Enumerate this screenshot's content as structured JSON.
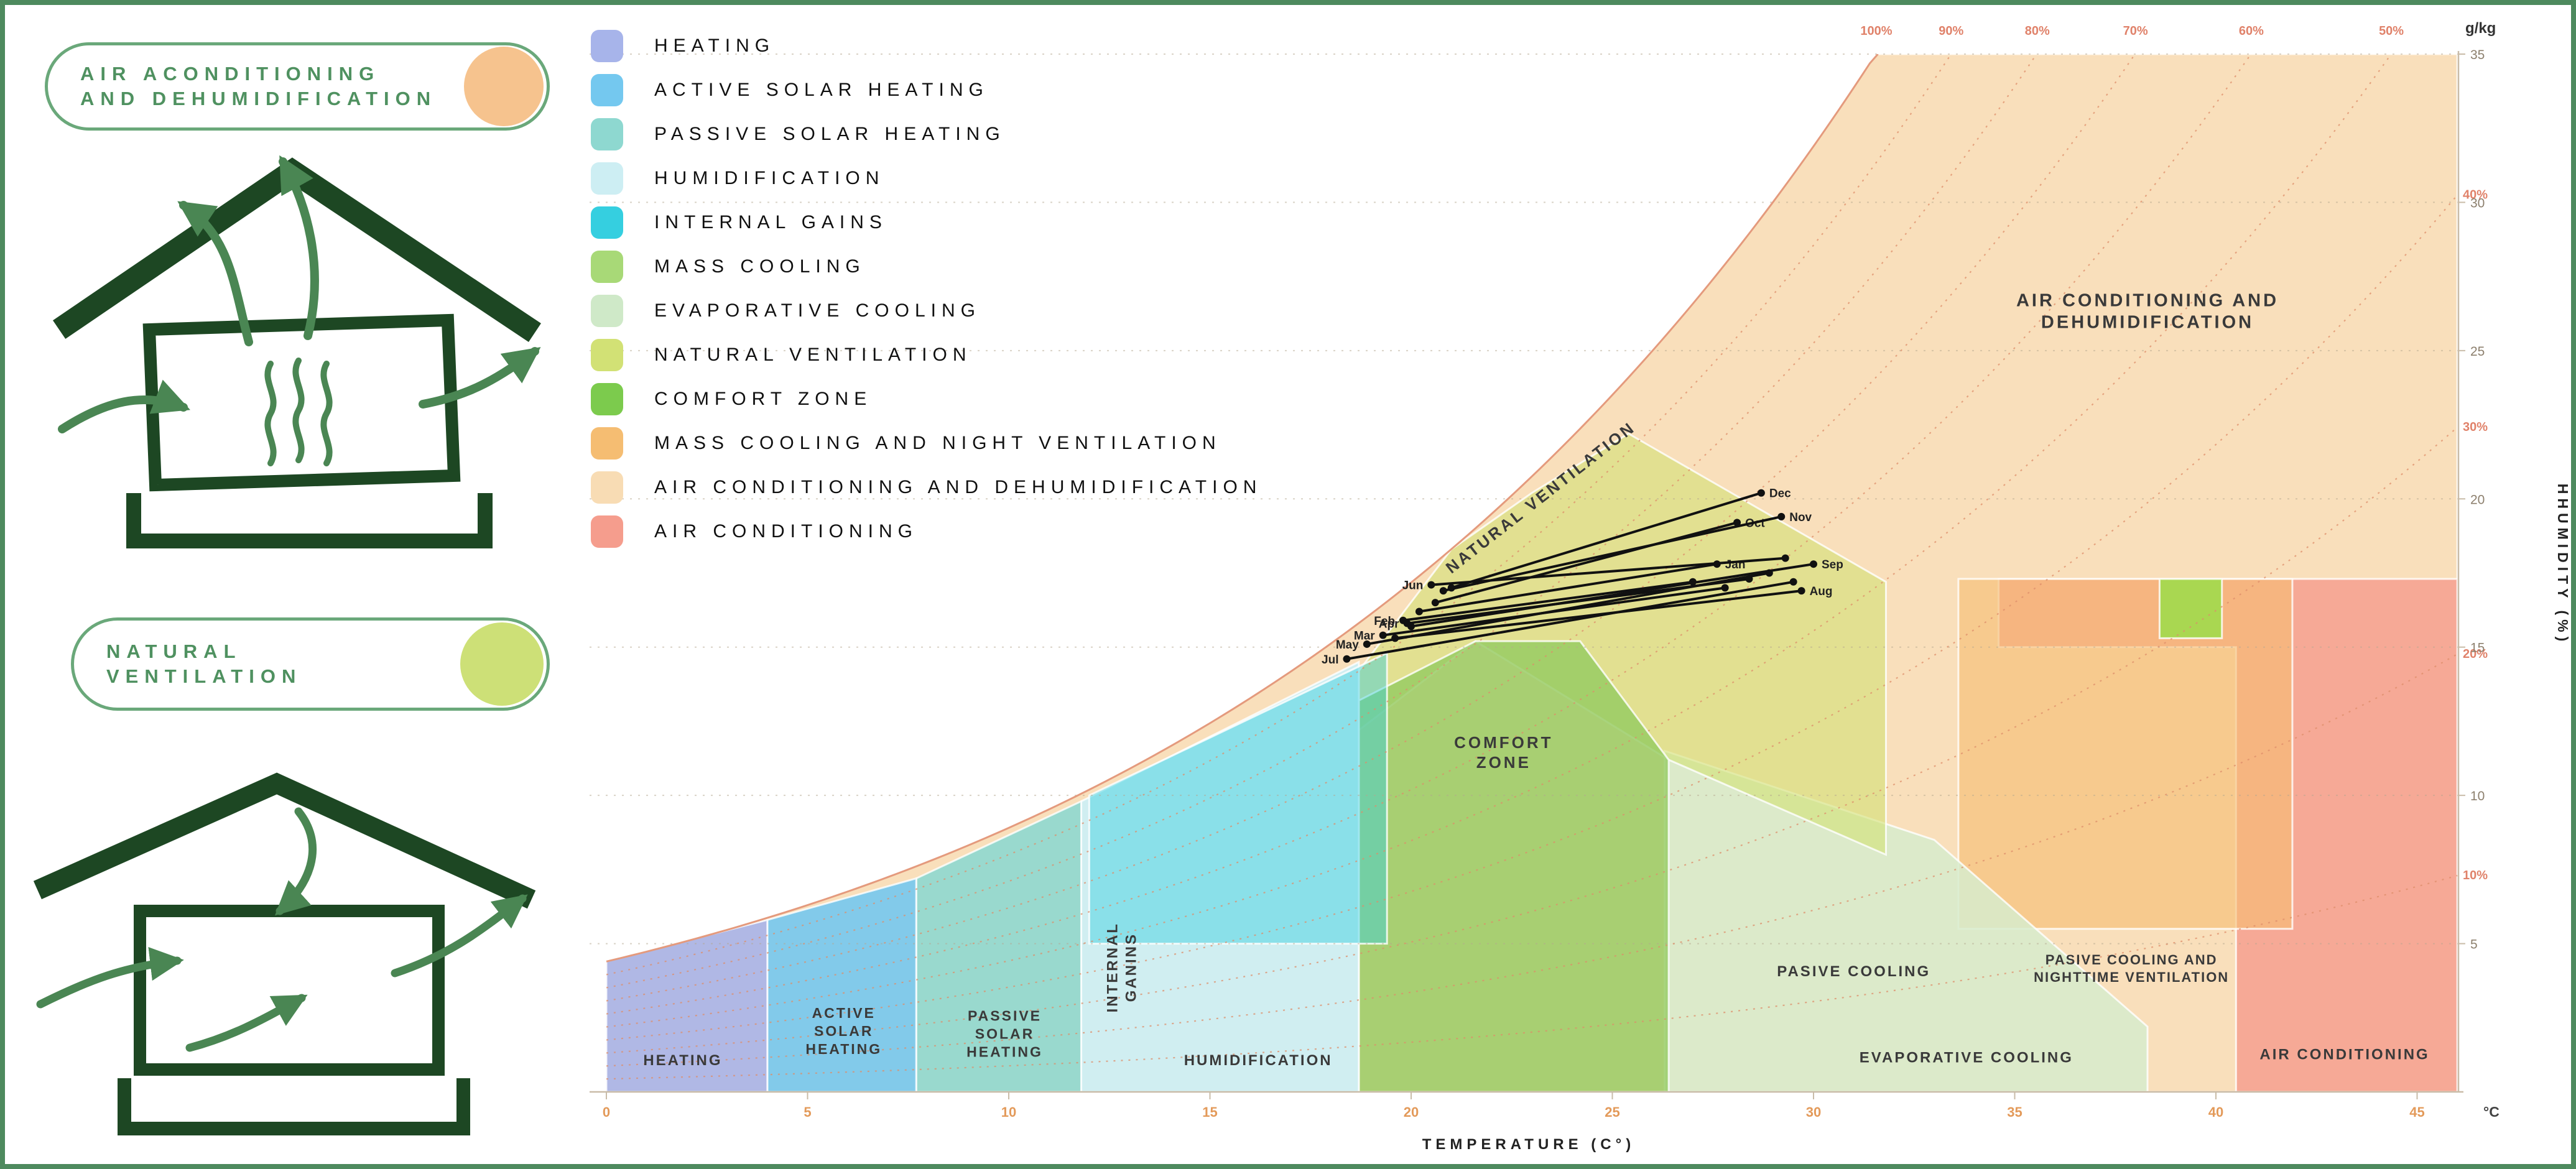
{
  "poster": {
    "frame_color": "#4e8a5e",
    "background": "#ffffff"
  },
  "left_panel": {
    "cards": [
      {
        "title_line1": "AIR ACONDITIONING",
        "title_line2": "AND DEHUMIDIFICATION",
        "badge_color": "#f6c38e"
      },
      {
        "title_line1": "NATURAL",
        "title_line2": "VENTILATION",
        "badge_color": "#cde077"
      }
    ]
  },
  "legend": {
    "items": [
      {
        "label": "HEATING",
        "color": "#a7b4ea"
      },
      {
        "label": "ACTIVE SOLAR HEATING",
        "color": "#74c8ef"
      },
      {
        "label": "PASSIVE SOLAR HEATING",
        "color": "#8ed8d0"
      },
      {
        "label": "HUMIDIFICATION",
        "color": "#cdeef3"
      },
      {
        "label": "INTERNAL GAINS",
        "color": "#35cfe0"
      },
      {
        "label": "MASS COOLING",
        "color": "#a8d977"
      },
      {
        "label": "EVAPORATIVE COOLING",
        "color": "#cfe9c8"
      },
      {
        "label": "NATURAL VENTILATION",
        "color": "#d2e175"
      },
      {
        "label": "COMFORT ZONE",
        "color": "#7ccb4d"
      },
      {
        "label": "MASS COOLING AND NIGHT VENTILATION",
        "color": "#f5bd72"
      },
      {
        "label": "AIR CONDITIONING AND DEHUMIDIFICATION",
        "color": "#f8dcb4"
      },
      {
        "label": "AIR CONDITIONING",
        "color": "#f59d8d"
      }
    ]
  },
  "chart_data": {
    "type": "area",
    "subtype": "psychrometric-bioclimatic-strategy-chart",
    "x_axis": {
      "title": "TEMPERATURE (C°)",
      "min": 0,
      "max": 46,
      "ticks": [
        0,
        5,
        10,
        15,
        20,
        25,
        30,
        35,
        40,
        45
      ],
      "unit_label": "°C"
    },
    "y_axis": {
      "title": "HHUMIDITY (%)",
      "unit_label": "g/kg",
      "min": 0,
      "max": 35,
      "ticks": [
        5,
        10,
        15,
        20,
        25,
        30,
        35
      ],
      "side": "right"
    },
    "rh_curves": {
      "all": [
        10,
        20,
        30,
        40,
        50,
        60,
        70,
        80,
        90,
        100
      ],
      "top_labels": [
        100,
        90,
        80,
        70,
        60,
        50
      ],
      "right_labels": [
        40,
        30,
        20,
        10
      ]
    },
    "zones": [
      {
        "name": "air-conditioning-and-dehumidification",
        "color": "#f8dcb4",
        "opacity": 0.9,
        "points": [
          [
            0,
            0
          ],
          [
            46,
            0
          ],
          [
            46,
            35
          ],
          [
            0,
            35
          ]
        ],
        "label": {
          "lines": [
            "AIR CONDITIONING AND",
            "DEHUMIDIFICATION"
          ],
          "t": 38.3,
          "w": 26.5,
          "size": 29,
          "weight": 700,
          "ls": 4,
          "rotate": 0
        }
      },
      {
        "name": "air-conditioning",
        "color": "#f59d8d",
        "opacity": 0.82,
        "points": [
          [
            40.5,
            0
          ],
          [
            46,
            0
          ],
          [
            46,
            17.3
          ],
          [
            34.6,
            17.3
          ],
          [
            34.6,
            15
          ],
          [
            40.5,
            15
          ]
        ],
        "label": {
          "lines": [
            "AIR CONDITIONING"
          ],
          "t": 43.2,
          "w": 1.1,
          "size": 24,
          "weight": 700,
          "ls": 3
        }
      },
      {
        "name": "mass-cooling-and-night-ventilation",
        "color": "#f5bd72",
        "opacity": 0.62,
        "points": [
          [
            33.6,
            5.5
          ],
          [
            41.9,
            5.5
          ],
          [
            41.9,
            17.3
          ],
          [
            33.6,
            17.3
          ]
        ],
        "label": {
          "lines": [
            "PASIVE COOLING AND",
            "NIGHTTIME VENTILATION"
          ],
          "t": 37.9,
          "w": 4.3,
          "size": 22,
          "weight": 700,
          "ls": 2
        }
      },
      {
        "name": "evaporative-cooling",
        "color": "#d7eccd",
        "opacity": 0.85,
        "points": [
          [
            26.3,
            0
          ],
          [
            38.3,
            0
          ],
          [
            38.3,
            2.2
          ],
          [
            33,
            8.5
          ],
          [
            26.3,
            11.5
          ]
        ],
        "label": {
          "lines": [
            "EVAPORATIVE COOLING"
          ],
          "t": 33.8,
          "w": 1.0,
          "size": 24,
          "weight": 700,
          "ls": 3
        }
      },
      {
        "name": "natural-ventilation",
        "color": "#d2e175",
        "opacity": 0.6,
        "points": [
          [
            18.7,
            12.2
          ],
          [
            18.7,
            14.2
          ],
          [
            21,
            18.3
          ],
          [
            23,
            20.2
          ],
          [
            25.4,
            22.2
          ],
          [
            31.8,
            17.2
          ],
          [
            31.8,
            8.0
          ],
          [
            26.4,
            11.2
          ],
          [
            21.6,
            15.2
          ]
        ],
        "label": {
          "lines": [
            "NATURAL VENTILATION"
          ],
          "t": 23.3,
          "w": 19.9,
          "size": 26,
          "weight": 700,
          "ls": 4,
          "rotate": -38
        }
      },
      {
        "name": "comfort-zone",
        "color": "#93cb60",
        "opacity": 0.8,
        "points": [
          [
            18.7,
            0
          ],
          [
            18.7,
            13.2
          ],
          [
            21.6,
            15.2
          ],
          [
            24.2,
            15.2
          ],
          [
            26.4,
            11.2
          ],
          [
            26.4,
            0
          ]
        ],
        "label": {
          "lines": [
            "COMFORT",
            "ZONE"
          ],
          "t": 22.3,
          "w": 11.6,
          "size": 26,
          "weight": 700,
          "ls": 4
        }
      },
      {
        "name": "humidification",
        "color": "#cdeef3",
        "opacity": 0.95,
        "points": [
          [
            11.8,
            0
          ],
          [
            18.7,
            0
          ],
          [
            18.7,
            14.5
          ],
          [
            11.8,
            9.8
          ]
        ],
        "label": {
          "lines": [
            "HUMIDIFICATION"
          ],
          "t": 16.2,
          "w": 0.9,
          "size": 24,
          "weight": 700,
          "ls": 3
        }
      },
      {
        "name": "passive-solar-heating",
        "color": "#8ed8d0",
        "opacity": 0.9,
        "points": [
          [
            7.7,
            0
          ],
          [
            11.8,
            0
          ],
          [
            11.8,
            9.8
          ],
          [
            7.7,
            7.2
          ]
        ],
        "label": {
          "lines": [
            "PASSIVE",
            "SOLAR",
            "HEATING"
          ],
          "t": 9.9,
          "w": 2.4,
          "size": 23,
          "weight": 700,
          "ls": 3
        }
      },
      {
        "name": "active-solar-heating",
        "color": "#74c8ef",
        "opacity": 0.9,
        "points": [
          [
            4,
            0
          ],
          [
            7.7,
            0
          ],
          [
            7.7,
            7.2
          ],
          [
            4,
            5.8
          ]
        ],
        "label": {
          "lines": [
            "ACTIVE",
            "SOLAR",
            "HEATING"
          ],
          "t": 5.9,
          "w": 2.5,
          "size": 23,
          "weight": 700,
          "ls": 3
        }
      },
      {
        "name": "heating",
        "color": "#a7b4ea",
        "opacity": 0.9,
        "points": [
          [
            0,
            0
          ],
          [
            4,
            0
          ],
          [
            4,
            5.8
          ],
          [
            0,
            4.4
          ]
        ],
        "label": {
          "lines": [
            "HEATING"
          ],
          "t": 1.9,
          "w": 0.9,
          "size": 24,
          "weight": 700,
          "ls": 3
        }
      },
      {
        "name": "internal-gains",
        "color": "#35cfe0",
        "opacity": 0.45,
        "points": [
          [
            12,
            5
          ],
          [
            19.4,
            5
          ],
          [
            19.4,
            14.8
          ],
          [
            12,
            10
          ]
        ],
        "label": {
          "lines": [
            "INTERNAL",
            "GANINS"
          ],
          "t": 12.7,
          "w": 4.2,
          "size": 24,
          "weight": 700,
          "ls": 3,
          "rotate": -90
        }
      },
      {
        "name": "comfort-marker-square",
        "color": "#a4d94e",
        "opacity": 0.95,
        "points": [
          [
            38.6,
            15.3
          ],
          [
            40.15,
            15.3
          ],
          [
            40.15,
            17.3
          ],
          [
            38.6,
            17.3
          ]
        ]
      }
    ],
    "extra_labels": [
      {
        "lines": [
          "PASIVE COOLING"
        ],
        "t": 31.0,
        "w": 3.9,
        "size": 24,
        "weight": 700,
        "ls": 3
      }
    ],
    "months": [
      {
        "name": "Jan",
        "from": [
          20.2,
          16.2
        ],
        "to": [
          27.6,
          17.8
        ],
        "label_at": "end"
      },
      {
        "name": "Feb",
        "from": [
          19.8,
          15.9
        ],
        "to": [
          27.0,
          17.2
        ],
        "label_at": "start"
      },
      {
        "name": "Mar",
        "from": [
          19.3,
          15.4
        ],
        "to": [
          27.8,
          17.0
        ],
        "label_at": "start"
      },
      {
        "name": "Apr",
        "from": [
          19.9,
          15.8
        ],
        "to": [
          28.4,
          17.3
        ],
        "label_at": "start"
      },
      {
        "name": "May",
        "from": [
          18.9,
          15.1
        ],
        "to": [
          28.9,
          17.5
        ],
        "label_at": "start"
      },
      {
        "name": "Jun",
        "from": [
          20.5,
          17.1
        ],
        "to": [
          29.3,
          18.0
        ],
        "label_at": "start"
      },
      {
        "name": "Jul",
        "from": [
          18.4,
          14.6
        ],
        "to": [
          29.5,
          17.2
        ],
        "label_at": "start"
      },
      {
        "name": "Aug",
        "from": [
          19.6,
          15.3
        ],
        "to": [
          29.7,
          16.9
        ],
        "label_at": "end"
      },
      {
        "name": "Sep",
        "from": [
          20.0,
          15.7
        ],
        "to": [
          30.0,
          17.8
        ],
        "label_at": "end"
      },
      {
        "name": "Oct",
        "from": [
          20.6,
          16.5
        ],
        "to": [
          28.1,
          19.2
        ],
        "label_at": "end"
      },
      {
        "name": "Nov",
        "from": [
          20.8,
          16.9
        ],
        "to": [
          29.2,
          19.4
        ],
        "label_at": "end"
      },
      {
        "name": "Dec",
        "from": [
          21.0,
          17.0
        ],
        "to": [
          28.7,
          20.2
        ],
        "label_at": "end"
      }
    ]
  }
}
